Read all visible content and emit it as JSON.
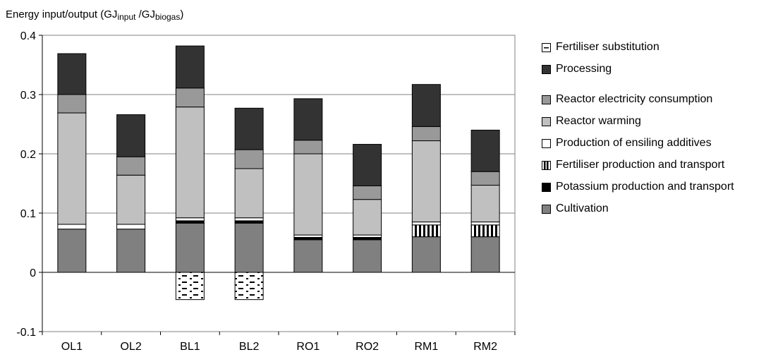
{
  "colors": {
    "processing": "#333333",
    "reactor_electricity": "#999999",
    "reactor_warming": "#c0c0c0",
    "ensiling_additives": "#ffffff",
    "fertiliser_production": "#ffffff",
    "potassium": "#000000",
    "cultivation": "#808080",
    "fertiliser_substitution": "#ffffff"
  },
  "chart_data": {
    "type": "bar",
    "stacked": true,
    "ylabel_main": "Energy  input/output  (GJ",
    "ylabel_sub1": "input",
    "ylabel_sep": " /GJ",
    "ylabel_sub2": "biogas",
    "ylabel_close": ")",
    "ylim": [
      -0.1,
      0.4
    ],
    "yticks": [
      {
        "value": 0.4,
        "label": "0.4"
      },
      {
        "value": 0.3,
        "label": "0.3"
      },
      {
        "value": 0.2,
        "label": "0.2"
      },
      {
        "value": 0.1,
        "label": "0.1"
      },
      {
        "value": 0,
        "label": "0"
      },
      {
        "value": -0.1,
        "label": "-0.1"
      }
    ],
    "grid": true,
    "legend_position": "right",
    "categories": [
      "OL1",
      "OL2",
      "BL1",
      "BL2",
      "RO1",
      "RO2",
      "RM1",
      "RM2"
    ],
    "series": [
      {
        "name": "Cultivation",
        "key": "cultivation",
        "pattern": "solid",
        "values": [
          0.073,
          0.073,
          0.083,
          0.083,
          0.055,
          0.055,
          0.06,
          0.06
        ]
      },
      {
        "name": "Potassium production and  transport",
        "key": "potassium",
        "pattern": "solid",
        "values": [
          0.0,
          0.0,
          0.004,
          0.004,
          0.004,
          0.004,
          0.0,
          0.0
        ]
      },
      {
        "name": "Fertiliser production and  transport",
        "key": "fertiliser_production",
        "pattern": "vlines",
        "values": [
          0.0,
          0.0,
          0.0,
          0.0,
          0.0,
          0.0,
          0.02,
          0.02
        ]
      },
      {
        "name": "Production of ensiling  additives",
        "key": "ensiling_additives",
        "pattern": "solid",
        "values": [
          0.008,
          0.008,
          0.005,
          0.005,
          0.004,
          0.004,
          0.005,
          0.005
        ]
      },
      {
        "name": "Reactor warming",
        "key": "reactor_warming",
        "pattern": "solid",
        "values": [
          0.188,
          0.083,
          0.187,
          0.083,
          0.137,
          0.06,
          0.137,
          0.062
        ]
      },
      {
        "name": "Reactor electricity  consumption",
        "key": "reactor_electricity",
        "pattern": "solid",
        "values": [
          0.031,
          0.031,
          0.032,
          0.032,
          0.023,
          0.023,
          0.024,
          0.023
        ]
      },
      {
        "name": "Processing",
        "key": "processing",
        "pattern": "solid",
        "values": [
          0.069,
          0.071,
          0.071,
          0.07,
          0.07,
          0.07,
          0.071,
          0.07
        ]
      },
      {
        "name": "Fertiliser substitution",
        "key": "fertiliser_substitution",
        "pattern": "dashes",
        "values": [
          0,
          0,
          -0.046,
          -0.046,
          0,
          0,
          0,
          0
        ]
      }
    ],
    "legend_order": [
      "Fertiliser substitution",
      "Processing",
      "Reactor electricity  consumption",
      "Reactor warming",
      "Production of ensiling  additives",
      "Fertiliser production and  transport",
      "Potassium production and  transport",
      "Cultivation"
    ]
  }
}
